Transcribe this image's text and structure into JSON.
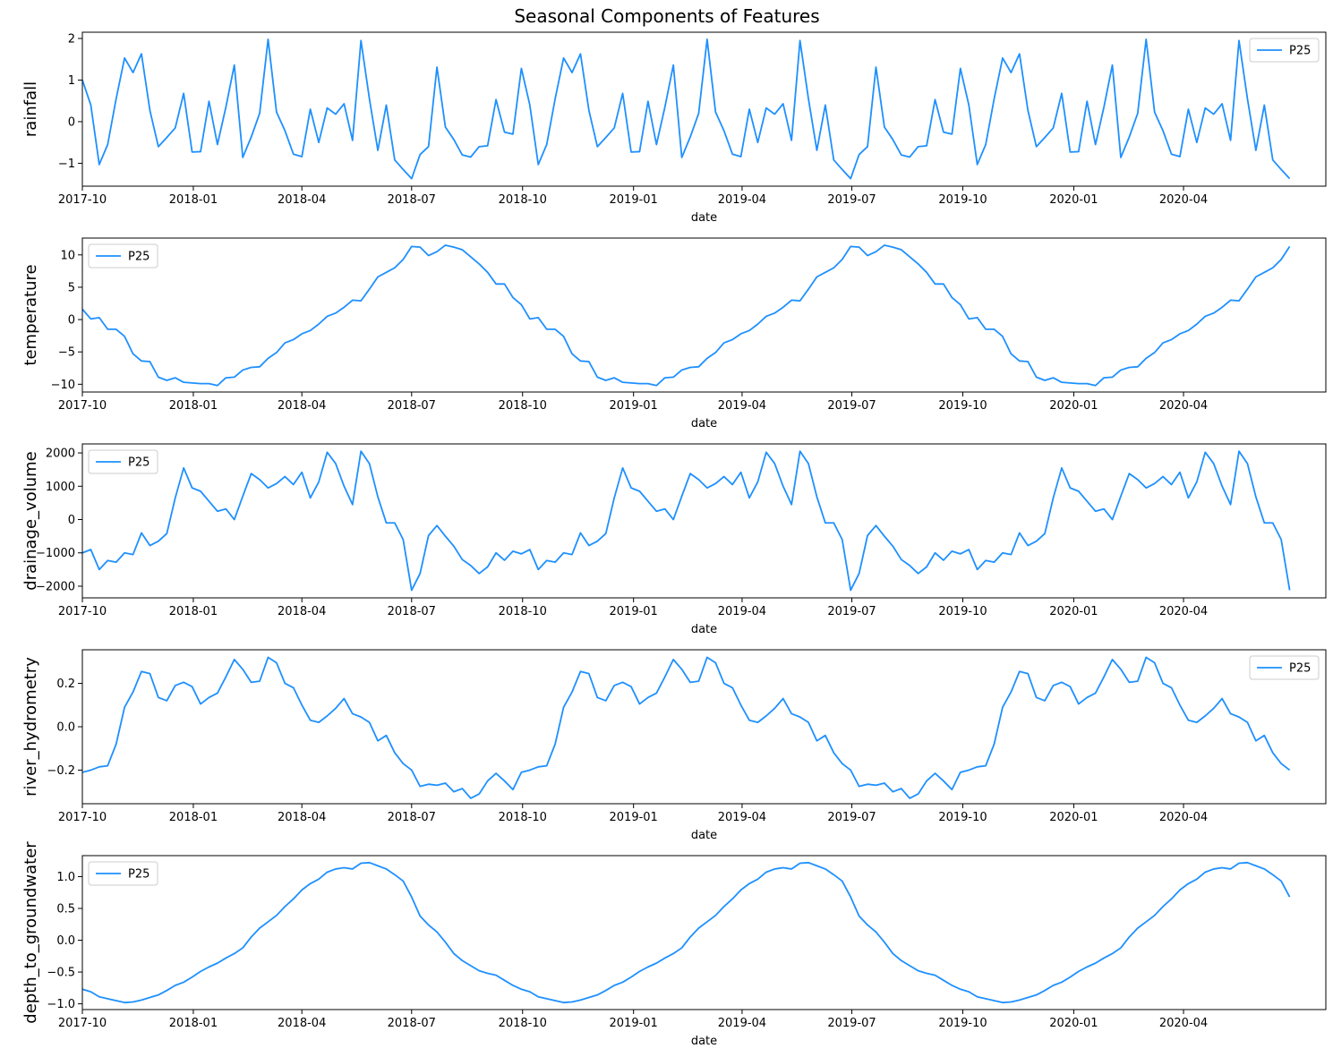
{
  "figure": {
    "title": "Seasonal Components of Features",
    "line_color": "#1e90ff"
  },
  "chart_data": [
    {
      "type": "line",
      "ylabel": "rainfall",
      "xlabel": "date",
      "legend": "P25",
      "legend_position": "top-right",
      "ylim": [
        -1.55,
        2.15
      ],
      "yticks": [
        -1,
        0,
        1,
        2
      ],
      "ytick_labels": [
        "−1",
        "0",
        "1",
        "2"
      ],
      "xlim": [
        "2017-10-01",
        "2020-07-28"
      ],
      "xticks": [
        "2017-10-01",
        "2018-01-01",
        "2018-04-01",
        "2018-07-01",
        "2018-10-01",
        "2019-01-01",
        "2019-04-01",
        "2019-07-01",
        "2019-10-01",
        "2020-01-01",
        "2020-04-01"
      ],
      "xtick_labels": [
        "2017-10",
        "2018-01",
        "2018-04",
        "2018-07",
        "2018-10",
        "2019-01",
        "2019-04",
        "2019-07",
        "2019-10",
        "2020-01",
        "2020-04"
      ],
      "x_start": "2017-10-01",
      "x_step_days": 7,
      "period": 52,
      "cycle_values": [
        1.0,
        0.4,
        -1.03,
        -0.55,
        0.55,
        1.53,
        1.18,
        1.63,
        0.27,
        -0.6,
        -0.38,
        -0.15,
        0.68,
        -0.73,
        -0.72,
        0.49,
        -0.55,
        0.35,
        1.36,
        -0.86,
        -0.37,
        0.2,
        1.98,
        0.23,
        -0.22,
        -0.78,
        -0.84,
        0.3,
        -0.5,
        0.33,
        0.18,
        0.43,
        -0.45,
        1.95,
        0.55,
        -0.69,
        0.4,
        -0.92,
        -1.15,
        -1.37,
        -0.79,
        -0.6,
        1.31,
        -0.13,
        -0.43,
        -0.8,
        -0.85,
        -0.6,
        -0.58,
        0.53,
        -0.25,
        -0.3
      ],
      "values": [
        1.0,
        0.4,
        -1.03,
        -0.55,
        0.55,
        1.53,
        1.18,
        1.63,
        0.27,
        -0.6,
        -0.38,
        -0.15,
        0.68,
        -0.73,
        -0.72,
        0.49,
        -0.55,
        0.35,
        1.36,
        -0.86,
        -0.37,
        0.2,
        1.98,
        0.23,
        -0.22,
        -0.78,
        -0.84,
        0.3,
        -0.5,
        0.33,
        0.18,
        0.43,
        -0.45,
        1.95,
        0.55,
        -0.69,
        0.4,
        -0.92,
        -1.15,
        -1.37,
        -0.79,
        -0.6,
        1.31,
        -0.13,
        -0.43,
        -0.8,
        -0.85,
        -0.6,
        -0.58,
        0.53,
        -0.25,
        -0.3,
        1.28,
        0.4,
        -1.03,
        -0.55,
        0.55,
        1.53,
        1.18,
        1.63,
        0.27,
        -0.6,
        -0.38,
        -0.15,
        0.68,
        -0.73,
        -0.72,
        0.49,
        -0.55,
        0.35,
        1.36,
        -0.86,
        -0.37,
        0.2,
        1.98,
        0.23,
        -0.22,
        -0.78,
        -0.84,
        0.3,
        -0.5,
        0.33,
        0.18,
        0.43,
        -0.45,
        1.95,
        0.55,
        -0.69,
        0.4,
        -0.92,
        -1.15,
        -1.37,
        -0.79,
        -0.6,
        1.31,
        -0.13,
        -0.43,
        -0.8,
        -0.85,
        -0.6,
        -0.58,
        0.53,
        -0.25,
        -0.3,
        1.28,
        0.4,
        -1.03,
        -0.55,
        0.55,
        1.53,
        1.18,
        1.63,
        0.27,
        -0.6,
        -0.38,
        -0.15,
        0.68,
        -0.73,
        -0.72,
        0.49,
        -0.55,
        0.35,
        1.36,
        -0.86,
        -0.37,
        0.2,
        1.98,
        0.23,
        -0.22,
        -0.78,
        -0.84,
        0.3,
        -0.5,
        0.33,
        0.18,
        0.43,
        -0.45,
        1.95,
        0.55,
        -0.69,
        0.4,
        -0.92,
        -1.15,
        -1.37
      ]
    },
    {
      "type": "line",
      "ylabel": "temperature",
      "xlabel": "date",
      "legend": "P25",
      "legend_position": "top-left",
      "ylim": [
        -11.2,
        12.6
      ],
      "yticks": [
        -10,
        -5,
        0,
        5,
        10
      ],
      "ytick_labels": [
        "−10",
        "−5",
        "0",
        "5",
        "10"
      ],
      "xlim": [
        "2017-10-01",
        "2020-07-28"
      ],
      "xticks": [
        "2017-10-01",
        "2018-01-01",
        "2018-04-01",
        "2018-07-01",
        "2018-10-01",
        "2019-01-01",
        "2019-04-01",
        "2019-07-01",
        "2019-10-01",
        "2020-01-01",
        "2020-04-01"
      ],
      "xtick_labels": [
        "2017-10",
        "2018-01",
        "2018-04",
        "2018-07",
        "2018-10",
        "2019-01",
        "2019-04",
        "2019-07",
        "2019-10",
        "2020-01",
        "2020-04"
      ],
      "x_start": "2017-10-01",
      "x_step_days": 7,
      "period": 52,
      "cycle_values": [
        1.6,
        0.1,
        0.3,
        -1.5,
        -1.5,
        -2.6,
        -5.3,
        -6.4,
        -6.5,
        -8.9,
        -9.4,
        -9.0,
        -9.7,
        -9.8,
        -9.9,
        -9.9,
        -10.2,
        -9.0,
        -8.9,
        -7.8,
        -7.4,
        -7.3,
        -6.0,
        -5.1,
        -3.6,
        -3.1,
        -2.2,
        -1.7,
        -0.7,
        0.5,
        1.0,
        1.9,
        3.0,
        2.9,
        4.7,
        6.6,
        7.3,
        8.0,
        9.3,
        11.3,
        11.2,
        9.9,
        10.5,
        11.5,
        11.2,
        10.8,
        9.7,
        8.6,
        7.3,
        5.5,
        5.5,
        3.4
      ],
      "values": [
        1.6,
        0.1,
        0.3,
        -1.5,
        -1.5,
        -2.6,
        -5.3,
        -6.4,
        -6.5,
        -8.9,
        -9.4,
        -9.0,
        -9.7,
        -9.8,
        -9.9,
        -9.9,
        -10.2,
        -9.0,
        -8.9,
        -7.8,
        -7.4,
        -7.3,
        -6.0,
        -5.1,
        -3.6,
        -3.1,
        -2.2,
        -1.7,
        -0.7,
        0.5,
        1.0,
        1.9,
        3.0,
        2.9,
        4.7,
        6.6,
        7.3,
        8.0,
        9.3,
        11.3,
        11.2,
        9.9,
        10.5,
        11.5,
        11.2,
        10.8,
        9.7,
        8.6,
        7.3,
        5.5,
        5.5,
        3.4,
        2.3,
        0.1,
        0.3,
        -1.5,
        -1.5,
        -2.6,
        -5.3,
        -6.4,
        -6.5,
        -8.9,
        -9.4,
        -9.0,
        -9.7,
        -9.8,
        -9.9,
        -9.9,
        -10.2,
        -9.0,
        -8.9,
        -7.8,
        -7.4,
        -7.3,
        -6.0,
        -5.1,
        -3.6,
        -3.1,
        -2.2,
        -1.7,
        -0.7,
        0.5,
        1.0,
        1.9,
        3.0,
        2.9,
        4.7,
        6.6,
        7.3,
        8.0,
        9.3,
        11.3,
        11.2,
        9.9,
        10.5,
        11.5,
        11.2,
        10.8,
        9.7,
        8.6,
        7.3,
        5.5,
        5.5,
        3.4,
        2.3,
        0.1,
        0.3,
        -1.5,
        -1.5,
        -2.6,
        -5.3,
        -6.4,
        -6.5,
        -8.9,
        -9.4,
        -9.0,
        -9.7,
        -9.8,
        -9.9,
        -9.9,
        -10.2,
        -9.0,
        -8.9,
        -7.8,
        -7.4,
        -7.3,
        -6.0,
        -5.1,
        -3.6,
        -3.1,
        -2.2,
        -1.7,
        -0.7,
        0.5,
        1.0,
        1.9,
        3.0,
        2.9,
        4.7,
        6.6,
        7.3,
        8.0,
        9.3,
        11.3
      ]
    },
    {
      "type": "line",
      "ylabel": "drainage_volume",
      "xlabel": "date",
      "legend": "P25",
      "legend_position": "top-left",
      "ylim": [
        -2350,
        2270
      ],
      "yticks": [
        -2000,
        -1000,
        0,
        1000,
        2000
      ],
      "ytick_labels": [
        "−2000",
        "−1000",
        "0",
        "1000",
        "2000"
      ],
      "xlim": [
        "2017-10-01",
        "2020-07-28"
      ],
      "xticks": [
        "2017-10-01",
        "2018-01-01",
        "2018-04-01",
        "2018-07-01",
        "2018-10-01",
        "2019-01-01",
        "2019-04-01",
        "2019-07-01",
        "2019-10-01",
        "2020-01-01",
        "2020-04-01"
      ],
      "xtick_labels": [
        "2017-10",
        "2018-01",
        "2018-04",
        "2018-07",
        "2018-10",
        "2019-01",
        "2019-04",
        "2019-07",
        "2019-10",
        "2020-01",
        "2020-04"
      ],
      "x_start": "2017-10-01",
      "x_step_days": 7,
      "period": 52,
      "cycle_values": [
        -1000,
        -900,
        -1500,
        -1230,
        -1280,
        -1000,
        -1050,
        -400,
        -780,
        -650,
        -420,
        650,
        1550,
        950,
        850,
        550,
        250,
        320,
        0,
        700,
        1380,
        1200,
        950,
        1080,
        1290,
        1050,
        1420,
        650,
        1130,
        2020,
        1680,
        1000,
        450,
        2050,
        1680,
        680,
        -100,
        -100,
        -600,
        -2120,
        -1620,
        -480,
        -180,
        -500,
        -800,
        -1200,
        -1380,
        -1620,
        -1420,
        -1000,
        -1220,
        -950
      ],
      "values": [
        -1000,
        -900,
        -1500,
        -1230,
        -1280,
        -1000,
        -1050,
        -400,
        -780,
        -650,
        -420,
        650,
        1550,
        950,
        850,
        550,
        250,
        320,
        0,
        700,
        1380,
        1200,
        950,
        1080,
        1290,
        1050,
        1420,
        650,
        1130,
        2020,
        1680,
        1000,
        450,
        2050,
        1680,
        680,
        -100,
        -100,
        -600,
        -2120,
        -1620,
        -480,
        -180,
        -500,
        -800,
        -1200,
        -1380,
        -1620,
        -1420,
        -1000,
        -1220,
        -950,
        -1030,
        -900,
        -1500,
        -1230,
        -1280,
        -1000,
        -1050,
        -400,
        -780,
        -650,
        -420,
        650,
        1550,
        950,
        850,
        550,
        250,
        320,
        0,
        700,
        1380,
        1200,
        950,
        1080,
        1290,
        1050,
        1420,
        650,
        1130,
        2020,
        1680,
        1000,
        450,
        2050,
        1680,
        680,
        -100,
        -100,
        -600,
        -2120,
        -1620,
        -480,
        -180,
        -500,
        -800,
        -1200,
        -1380,
        -1620,
        -1420,
        -1000,
        -1220,
        -950,
        -1030,
        -900,
        -1500,
        -1230,
        -1280,
        -1000,
        -1050,
        -400,
        -780,
        -650,
        -420,
        650,
        1550,
        950,
        850,
        550,
        250,
        320,
        0,
        700,
        1380,
        1200,
        950,
        1080,
        1290,
        1050,
        1420,
        650,
        1130,
        2020,
        1680,
        1000,
        450,
        2050,
        1680,
        680,
        -100,
        -100,
        -600,
        -2120
      ]
    },
    {
      "type": "line",
      "ylabel": "river_hydrometry",
      "xlabel": "date",
      "legend": "P25",
      "legend_position": "top-right",
      "ylim": [
        -0.355,
        0.355
      ],
      "yticks": [
        -0.2,
        0.0,
        0.2
      ],
      "ytick_labels": [
        "−0.2",
        "0.0",
        "0.2"
      ],
      "xlim": [
        "2017-10-01",
        "2020-07-28"
      ],
      "xticks": [
        "2017-10-01",
        "2018-01-01",
        "2018-04-01",
        "2018-07-01",
        "2018-10-01",
        "2019-01-01",
        "2019-04-01",
        "2019-07-01",
        "2019-10-01",
        "2020-01-01",
        "2020-04-01"
      ],
      "xtick_labels": [
        "2017-10",
        "2018-01",
        "2018-04",
        "2018-07",
        "2018-10",
        "2019-01",
        "2019-04",
        "2019-07",
        "2019-10",
        "2020-01",
        "2020-04"
      ],
      "x_start": "2017-10-01",
      "x_step_days": 7,
      "period": 52,
      "cycle_values": [
        -0.21,
        -0.2,
        -0.185,
        -0.18,
        -0.08,
        0.09,
        0.16,
        0.255,
        0.245,
        0.135,
        0.12,
        0.19,
        0.205,
        0.185,
        0.105,
        0.135,
        0.155,
        0.23,
        0.31,
        0.265,
        0.205,
        0.21,
        0.32,
        0.295,
        0.2,
        0.18,
        0.1,
        0.03,
        0.02,
        0.05,
        0.085,
        0.13,
        0.06,
        0.045,
        0.02,
        -0.065,
        -0.04,
        -0.12,
        -0.17,
        -0.2,
        -0.275,
        -0.265,
        -0.27,
        -0.26,
        -0.3,
        -0.285,
        -0.33,
        -0.31,
        -0.25,
        -0.215,
        -0.25,
        -0.29
      ],
      "values": [
        -0.21,
        -0.2,
        -0.185,
        -0.18,
        -0.08,
        0.09,
        0.16,
        0.255,
        0.245,
        0.135,
        0.12,
        0.19,
        0.205,
        0.185,
        0.105,
        0.135,
        0.155,
        0.23,
        0.31,
        0.265,
        0.205,
        0.21,
        0.32,
        0.295,
        0.2,
        0.18,
        0.1,
        0.03,
        0.02,
        0.05,
        0.085,
        0.13,
        0.06,
        0.045,
        0.02,
        -0.065,
        -0.04,
        -0.12,
        -0.17,
        -0.2,
        -0.275,
        -0.265,
        -0.27,
        -0.26,
        -0.3,
        -0.285,
        -0.33,
        -0.31,
        -0.25,
        -0.215,
        -0.25,
        -0.29,
        -0.21,
        -0.2,
        -0.185,
        -0.18,
        -0.08,
        0.09,
        0.16,
        0.255,
        0.245,
        0.135,
        0.12,
        0.19,
        0.205,
        0.185,
        0.105,
        0.135,
        0.155,
        0.23,
        0.31,
        0.265,
        0.205,
        0.21,
        0.32,
        0.295,
        0.2,
        0.18,
        0.1,
        0.03,
        0.02,
        0.05,
        0.085,
        0.13,
        0.06,
        0.045,
        0.02,
        -0.065,
        -0.04,
        -0.12,
        -0.17,
        -0.2,
        -0.275,
        -0.265,
        -0.27,
        -0.26,
        -0.3,
        -0.285,
        -0.33,
        -0.31,
        -0.25,
        -0.215,
        -0.25,
        -0.29,
        -0.21,
        -0.2,
        -0.185,
        -0.18,
        -0.08,
        0.09,
        0.16,
        0.255,
        0.245,
        0.135,
        0.12,
        0.19,
        0.205,
        0.185,
        0.105,
        0.135,
        0.155,
        0.23,
        0.31,
        0.265,
        0.205,
        0.21,
        0.32,
        0.295,
        0.2,
        0.18,
        0.1,
        0.03,
        0.02,
        0.05,
        0.085,
        0.13,
        0.06,
        0.045,
        0.02,
        -0.065,
        -0.04,
        -0.12,
        -0.17,
        -0.2
      ]
    },
    {
      "type": "line",
      "ylabel": "depth_to_groundwater",
      "xlabel": "date",
      "legend": "P25",
      "legend_position": "top-left",
      "ylim": [
        -1.09,
        1.33
      ],
      "yticks": [
        -1.0,
        -0.5,
        0.0,
        0.5,
        1.0
      ],
      "ytick_labels": [
        "−1.0",
        "−0.5",
        "0.0",
        "0.5",
        "1.0"
      ],
      "xlim": [
        "2017-10-01",
        "2020-07-28"
      ],
      "xticks": [
        "2017-10-01",
        "2018-01-01",
        "2018-04-01",
        "2018-07-01",
        "2018-10-01",
        "2019-01-01",
        "2019-04-01",
        "2019-07-01",
        "2019-10-01",
        "2020-01-01",
        "2020-04-01"
      ],
      "xtick_labels": [
        "2017-10",
        "2018-01",
        "2018-04",
        "2018-07",
        "2018-10",
        "2019-01",
        "2019-04",
        "2019-07",
        "2019-10",
        "2020-01",
        "2020-04"
      ],
      "x_start": "2017-10-01",
      "x_step_days": 7,
      "period": 52,
      "cycle_values": [
        -0.77,
        -0.81,
        -0.89,
        -0.92,
        -0.95,
        -0.98,
        -0.97,
        -0.94,
        -0.9,
        -0.86,
        -0.79,
        -0.71,
        -0.66,
        -0.58,
        -0.49,
        -0.42,
        -0.36,
        -0.28,
        -0.21,
        -0.12,
        0.05,
        0.19,
        0.29,
        0.39,
        0.53,
        0.65,
        0.79,
        0.89,
        0.96,
        1.07,
        1.12,
        1.14,
        1.12,
        1.21,
        1.22,
        1.17,
        1.12,
        1.03,
        0.93,
        0.68,
        0.38,
        0.24,
        0.13,
        -0.03,
        -0.21,
        -0.32,
        -0.4,
        -0.48,
        -0.52,
        -0.55,
        -0.63,
        -0.71
      ],
      "values": [
        -0.77,
        -0.81,
        -0.89,
        -0.92,
        -0.95,
        -0.98,
        -0.97,
        -0.94,
        -0.9,
        -0.86,
        -0.79,
        -0.71,
        -0.66,
        -0.58,
        -0.49,
        -0.42,
        -0.36,
        -0.28,
        -0.21,
        -0.12,
        0.05,
        0.19,
        0.29,
        0.39,
        0.53,
        0.65,
        0.79,
        0.89,
        0.96,
        1.07,
        1.12,
        1.14,
        1.12,
        1.21,
        1.22,
        1.17,
        1.12,
        1.03,
        0.93,
        0.68,
        0.38,
        0.24,
        0.13,
        -0.03,
        -0.21,
        -0.32,
        -0.4,
        -0.48,
        -0.52,
        -0.55,
        -0.63,
        -0.71,
        -0.77,
        -0.81,
        -0.89,
        -0.92,
        -0.95,
        -0.98,
        -0.97,
        -0.94,
        -0.9,
        -0.86,
        -0.79,
        -0.71,
        -0.66,
        -0.58,
        -0.49,
        -0.42,
        -0.36,
        -0.28,
        -0.21,
        -0.12,
        0.05,
        0.19,
        0.29,
        0.39,
        0.53,
        0.65,
        0.79,
        0.89,
        0.96,
        1.07,
        1.12,
        1.14,
        1.12,
        1.21,
        1.22,
        1.17,
        1.12,
        1.03,
        0.93,
        0.68,
        0.38,
        0.24,
        0.13,
        -0.03,
        -0.21,
        -0.32,
        -0.4,
        -0.48,
        -0.52,
        -0.55,
        -0.63,
        -0.71,
        -0.77,
        -0.81,
        -0.89,
        -0.92,
        -0.95,
        -0.98,
        -0.97,
        -0.94,
        -0.9,
        -0.86,
        -0.79,
        -0.71,
        -0.66,
        -0.58,
        -0.49,
        -0.42,
        -0.36,
        -0.28,
        -0.21,
        -0.12,
        0.05,
        0.19,
        0.29,
        0.39,
        0.53,
        0.65,
        0.79,
        0.89,
        0.96,
        1.07,
        1.12,
        1.14,
        1.12,
        1.21,
        1.22,
        1.17,
        1.12,
        1.03,
        0.93,
        0.68
      ]
    }
  ]
}
